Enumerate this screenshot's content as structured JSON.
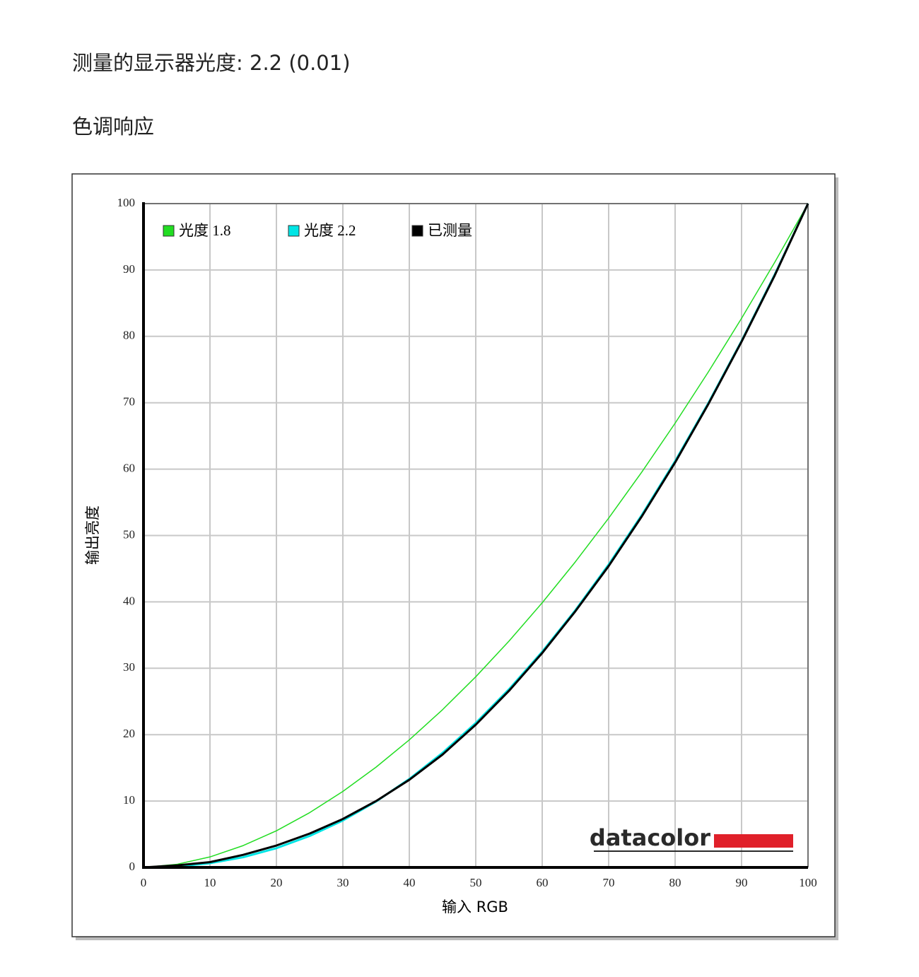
{
  "heading": "测量的显示器光度: 2.2 (0.01)",
  "section_title": "色调响应",
  "chart_data": {
    "type": "line",
    "x_label": "输入 RGB",
    "y_label": "输出亮度",
    "logo": "datacolor",
    "x": [
      0,
      5,
      10,
      15,
      20,
      25,
      30,
      35,
      40,
      45,
      50,
      55,
      60,
      65,
      70,
      75,
      80,
      85,
      90,
      95,
      100
    ],
    "series": [
      {
        "name": "光度 1.8",
        "color": "#22dd22",
        "width": 1.5,
        "values": [
          0,
          0.46,
          1.58,
          3.29,
          5.52,
          8.25,
          11.45,
          15.11,
          19.22,
          23.76,
          28.72,
          34.09,
          39.87,
          46.05,
          52.62,
          59.58,
          66.92,
          74.64,
          82.72,
          91.18,
          100
        ]
      },
      {
        "name": "光度 2.2",
        "color": "#00e5e5",
        "width": 3,
        "values": [
          0,
          0.14,
          0.63,
          1.54,
          2.9,
          4.74,
          7.07,
          9.93,
          13.32,
          17.26,
          21.76,
          26.84,
          32.5,
          38.76,
          45.63,
          53.11,
          61.21,
          69.94,
          79.31,
          89.33,
          100
        ]
      },
      {
        "name": "已测量",
        "color": "#000000",
        "width": 3,
        "values": [
          0,
          0.3,
          0.8,
          1.9,
          3.3,
          5.1,
          7.3,
          10.0,
          13.2,
          17.0,
          21.5,
          26.6,
          32.3,
          38.6,
          45.4,
          52.9,
          61.0,
          69.8,
          79.2,
          89.2,
          100
        ]
      }
    ],
    "xlim": [
      0,
      100
    ],
    "ylim": [
      0,
      100
    ],
    "xticks": [
      0,
      10,
      20,
      30,
      40,
      50,
      60,
      70,
      80,
      90,
      100
    ],
    "yticks": [
      0,
      10,
      20,
      30,
      40,
      50,
      60,
      70,
      80,
      90,
      100
    ],
    "grid": true,
    "legend": "top-left"
  }
}
